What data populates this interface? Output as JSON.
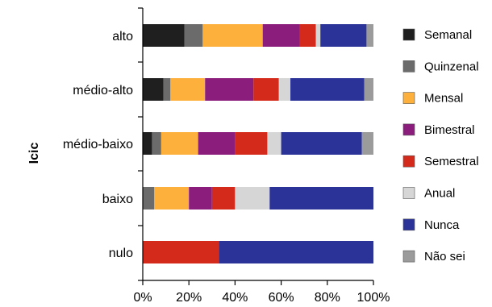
{
  "chart_data": {
    "type": "bar",
    "orientation": "horizontal",
    "stacked": true,
    "categories": [
      "alto",
      "médio-alto",
      "médio-baixo",
      "baixo",
      "nulo"
    ],
    "series": [
      {
        "name": "Semanal",
        "color": "#1f1f1f",
        "values": [
          18,
          9,
          4,
          0,
          0
        ]
      },
      {
        "name": "Quinzenal",
        "color": "#6b6b6b",
        "values": [
          8,
          3,
          4,
          5,
          0
        ]
      },
      {
        "name": "Mensal",
        "color": "#fdb13c",
        "values": [
          26,
          15,
          16,
          15,
          0
        ]
      },
      {
        "name": "Bimestral",
        "color": "#8b1e7d",
        "values": [
          16,
          21,
          16,
          10,
          0
        ]
      },
      {
        "name": "Semestral",
        "color": "#d32a1c",
        "values": [
          7,
          11,
          14,
          10,
          33
        ]
      },
      {
        "name": "Anual",
        "color": "#d6d6d6",
        "values": [
          2,
          5,
          6,
          15,
          0
        ]
      },
      {
        "name": "Nunca",
        "color": "#2b3398",
        "values": [
          20,
          32,
          35,
          45,
          67
        ]
      },
      {
        "name": "Não sei",
        "color": "#9b9b9b",
        "values": [
          3,
          4,
          5,
          0,
          0
        ]
      }
    ],
    "xlim": [
      0,
      100
    ],
    "xticks": [
      "0%",
      "20%",
      "40%",
      "60%",
      "80%",
      "100%"
    ],
    "ylabel": "Icic",
    "xlabel": "",
    "grid": false,
    "legend_position": "right"
  }
}
